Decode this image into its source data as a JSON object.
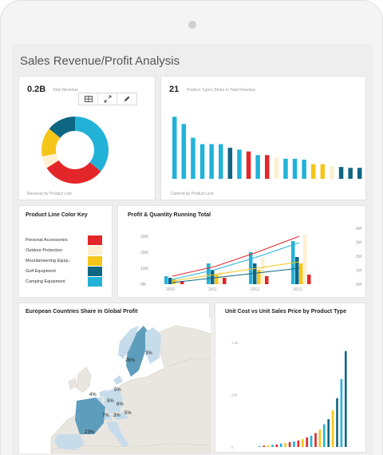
{
  "app": {
    "title": "Sales Revenue/Profit Analysis"
  },
  "colors": {
    "blue": "#22b2d8",
    "red": "#e3262a",
    "yellow": "#f5c518",
    "navy": "#0f6682",
    "cream": "#fdf0d2",
    "map_land": "#e9e6df",
    "map_light": "#c7dcea",
    "map_dark": "#5f9dbc"
  },
  "revenue_panel": {
    "value": "0.2B",
    "label": "Total Revenue",
    "footer": "Revenue by Product Line",
    "toolbar": {
      "icons": [
        "grid-icon",
        "expand-icon",
        "pencil-icon"
      ]
    },
    "chart_data": {
      "type": "pie",
      "labels": [
        "Camping Equipment",
        "Personal Accessories",
        "Outdoor Protection",
        "Mountaineering Equipment",
        "Golf Equipment"
      ],
      "values": [
        36,
        30,
        6,
        14,
        14
      ],
      "donut": true
    }
  },
  "share_panel": {
    "value": "21",
    "label": "Product Type's Share in Total Revenue",
    "footer": "Colored by Product Line",
    "chart_data": {
      "type": "bar",
      "values": [
        68,
        60,
        45,
        38,
        38,
        38,
        34,
        32,
        30,
        26,
        26,
        24,
        22,
        22,
        21,
        16,
        16,
        14,
        13,
        12,
        12
      ],
      "bar_colors": [
        "blue",
        "blue",
        "blue",
        "blue",
        "blue",
        "blue",
        "navy",
        "blue",
        "red",
        "blue",
        "red",
        "cream",
        "blue",
        "blue",
        "blue",
        "yellow",
        "yellow",
        "cream",
        "navy",
        "navy",
        "navy"
      ]
    }
  },
  "legend_panel": {
    "title": "Product Line Color Key",
    "items": [
      {
        "label": "Personal Accessories",
        "color": "#e3262a"
      },
      {
        "label": "Outdoor Protection",
        "color": "#fdf0d2"
      },
      {
        "label": "Mountaineering Equip..",
        "color": "#f5c518"
      },
      {
        "label": "Golf Equipment",
        "color": "#0f6682"
      },
      {
        "label": "Camping Equipment",
        "color": "#22b2d8"
      }
    ]
  },
  "profit_panel": {
    "title": "Profit & Quantity Running Total",
    "chart_data": {
      "type": "bar",
      "categories": [
        "2010",
        "2011",
        "2012",
        "2013"
      ],
      "y_left_ticks": [
        "0M",
        "10M",
        "20M",
        "30M"
      ],
      "y_right_ticks": [
        "0M",
        "1M",
        "2M",
        "3M",
        "4M"
      ],
      "ylim": [
        0,
        35
      ],
      "series": [
        {
          "color": "blue",
          "values": [
            5,
            13,
            20,
            27
          ]
        },
        {
          "color": "navy",
          "values": [
            4,
            9,
            13,
            17
          ]
        },
        {
          "color": "yellow",
          "values": [
            3,
            6,
            9,
            13
          ]
        },
        {
          "color": "cream",
          "values": [
            2,
            8,
            17,
            31
          ]
        },
        {
          "color": "red",
          "values": [
            2,
            4,
            5,
            6
          ]
        }
      ],
      "lines": [
        {
          "color": "red",
          "values": [
            5,
            11,
            20,
            30
          ]
        },
        {
          "color": "blue",
          "values": [
            3,
            9,
            17,
            26
          ]
        },
        {
          "color": "yellow",
          "values": [
            2,
            6,
            10,
            14
          ]
        },
        {
          "color": "navy",
          "values": [
            1,
            4,
            7,
            10
          ]
        }
      ]
    }
  },
  "europe_panel": {
    "title": "European Countries Share in Global Profit",
    "labels": [
      {
        "text": "3%"
      },
      {
        "text": "26%"
      },
      {
        "text": "4%"
      },
      {
        "text": "5%"
      },
      {
        "text": "5%"
      },
      {
        "text": "6%"
      },
      {
        "text": "7%"
      },
      {
        "text": "3%"
      },
      {
        "text": "5%"
      },
      {
        "text": "23%"
      }
    ]
  },
  "cost_panel": {
    "title": "Unit Cost vs Unit Sales Price by Product Type",
    "y_ticks": [
      "0",
      "600",
      "1.2K"
    ],
    "chart_data": {
      "type": "bar",
      "ylim": [
        0,
        1300
      ],
      "values": [
        10,
        15,
        20,
        25,
        30,
        40,
        45,
        55,
        65,
        75,
        90,
        110,
        130,
        160,
        200,
        260,
        320,
        420,
        560,
        780,
        1100
      ],
      "bar_colors": [
        "blue",
        "red",
        "yellow",
        "blue",
        "red",
        "blue",
        "yellow",
        "red",
        "blue",
        "red",
        "yellow",
        "red",
        "blue",
        "red",
        "yellow",
        "blue",
        "navy",
        "yellow",
        "navy",
        "blue",
        "navy"
      ]
    }
  }
}
